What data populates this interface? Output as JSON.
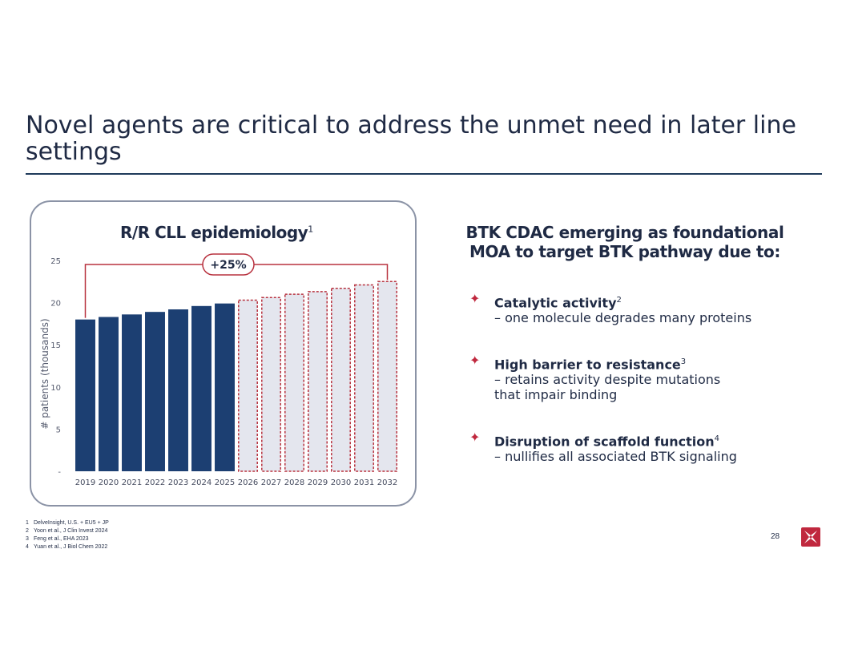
{
  "slide": {
    "title": "Novel agents are critical to address the unmet need in later line settings",
    "page_number": "28"
  },
  "chart_panel": {
    "title": "R/R CLL epidemiology",
    "title_sup": "1"
  },
  "chart_data": {
    "type": "bar",
    "title": "R/R CLL epidemiology",
    "ylabel": "# patients (thousands)",
    "xlabel": "",
    "ylim": [
      0,
      25
    ],
    "yticks": [
      {
        "value": 0,
        "label": "-"
      },
      {
        "value": 5,
        "label": "5"
      },
      {
        "value": 10,
        "label": "10"
      },
      {
        "value": 15,
        "label": "15"
      },
      {
        "value": 20,
        "label": "20"
      },
      {
        "value": 25,
        "label": "25"
      }
    ],
    "categories": [
      "2019",
      "2020",
      "2021",
      "2022",
      "2023",
      "2024",
      "2025",
      "2026",
      "2027",
      "2028",
      "2029",
      "2030",
      "2031",
      "2032"
    ],
    "values": [
      18.0,
      18.3,
      18.6,
      18.9,
      19.2,
      19.6,
      19.9,
      20.3,
      20.6,
      21.0,
      21.3,
      21.7,
      22.1,
      22.5
    ],
    "projected_from": "2026",
    "annotation": {
      "label": "+25%",
      "from": "2019",
      "to": "2032"
    },
    "colors": {
      "actual": "#1c3f72",
      "projected_fill": "#e4e6ee",
      "projected_stroke": "#b8323f",
      "bracket": "#b8323f"
    }
  },
  "right_panel": {
    "title_line1": "BTK CDAC emerging as foundational",
    "title_line2": "MOA to target BTK pathway due to:",
    "bullets": [
      {
        "head": "Catalytic activity",
        "sup": "2",
        "line1": "– one molecule degrades many proteins",
        "line2": ""
      },
      {
        "head": "High barrier to resistance",
        "sup": "3",
        "line1": "– retains activity despite mutations",
        "line2": "that impair binding"
      },
      {
        "head": "Disruption of scaffold function",
        "sup": "4",
        "line1": "– nullifies all associated BTK signaling",
        "line2": ""
      }
    ],
    "bullet_icon": "four-point-star-icon",
    "accent_color": "#c0283e"
  },
  "footnotes": [
    {
      "num": "1",
      "text": "DelveInsight, U.S. + EU5 + JP"
    },
    {
      "num": "2",
      "text": "Yoon et al., J Clin Invest 2024"
    },
    {
      "num": "3",
      "text": "Feng et al., EHA 2023"
    },
    {
      "num": "4",
      "text": "Yuan et al., J Biol Chem 2022"
    }
  ]
}
